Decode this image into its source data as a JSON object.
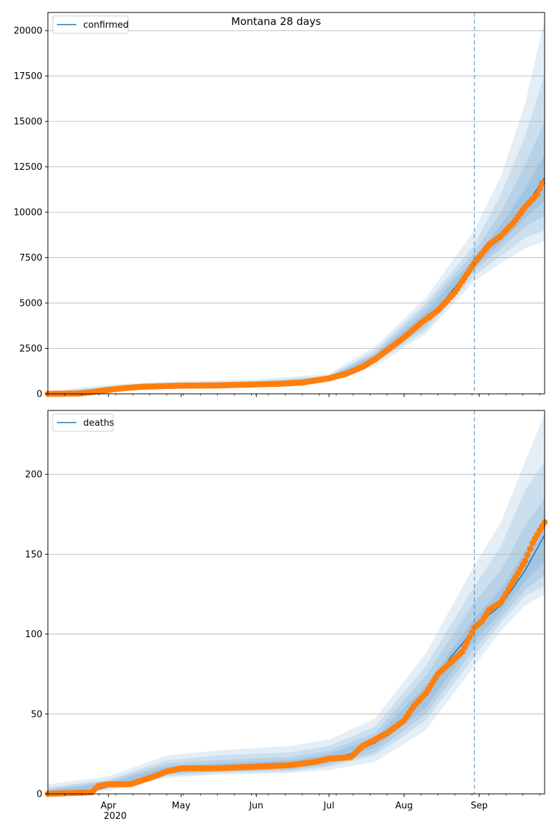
{
  "title": "Montana 28 days",
  "x_tick_labels": [
    "Apr",
    "May",
    "Jun",
    "Jul",
    "Aug",
    "Sep"
  ],
  "x_year_label": "2020",
  "chart_data": [
    {
      "type": "line",
      "x_unit": "date",
      "x_range": [
        "2020-03-07",
        "2020-09-28"
      ],
      "forecast_start": "2020-08-30",
      "ylim": [
        0,
        21000
      ],
      "yticks": [
        0,
        2500,
        5000,
        7500,
        10000,
        12500,
        15000,
        17500,
        20000
      ],
      "grid": "y",
      "legend": "top-left",
      "series": [
        {
          "name": "confirmed",
          "kind": "model-line",
          "color": "#1f77b4",
          "points": [
            [
              "2020-03-07",
              0
            ],
            [
              "2020-03-20",
              15
            ],
            [
              "2020-03-25",
              100
            ],
            [
              "2020-04-01",
              250
            ],
            [
              "2020-04-15",
              400
            ],
            [
              "2020-05-01",
              450
            ],
            [
              "2020-05-20",
              480
            ],
            [
              "2020-06-01",
              510
            ],
            [
              "2020-06-15",
              580
            ],
            [
              "2020-07-01",
              850
            ],
            [
              "2020-07-15",
              1500
            ],
            [
              "2020-07-25",
              2400
            ],
            [
              "2020-08-05",
              3600
            ],
            [
              "2020-08-15",
              4700
            ],
            [
              "2020-08-30",
              7200
            ],
            [
              "2020-09-10",
              8700
            ],
            [
              "2020-09-20",
              10300
            ],
            [
              "2020-09-28",
              11900
            ]
          ]
        },
        {
          "name": "",
          "kind": "observed",
          "color": "#ff7f0e",
          "points": [
            [
              "2020-03-07",
              0
            ],
            [
              "2020-03-15",
              5
            ],
            [
              "2020-03-20",
              20
            ],
            [
              "2020-03-25",
              90
            ],
            [
              "2020-04-01",
              220
            ],
            [
              "2020-04-08",
              320
            ],
            [
              "2020-04-15",
              390
            ],
            [
              "2020-04-25",
              430
            ],
            [
              "2020-05-01",
              450
            ],
            [
              "2020-05-15",
              460
            ],
            [
              "2020-06-01",
              520
            ],
            [
              "2020-06-10",
              550
            ],
            [
              "2020-06-20",
              620
            ],
            [
              "2020-07-01",
              850
            ],
            [
              "2020-07-08",
              1100
            ],
            [
              "2020-07-15",
              1500
            ],
            [
              "2020-07-20",
              1900
            ],
            [
              "2020-07-25",
              2400
            ],
            [
              "2020-08-01",
              3100
            ],
            [
              "2020-08-08",
              3900
            ],
            [
              "2020-08-15",
              4600
            ],
            [
              "2020-08-22",
              5600
            ],
            [
              "2020-08-30",
              7200
            ],
            [
              "2020-09-05",
              8200
            ],
            [
              "2020-09-10",
              8700
            ],
            [
              "2020-09-15",
              9400
            ],
            [
              "2020-09-20",
              10300
            ],
            [
              "2020-09-25",
              11000
            ],
            [
              "2020-09-27",
              11600
            ]
          ]
        }
      ],
      "bands": [
        {
          "opacity": 0.12,
          "points": [
            [
              "2020-03-07",
              0,
              150
            ],
            [
              "2020-04-01",
              150,
              500
            ],
            [
              "2020-05-01",
              380,
              700
            ],
            [
              "2020-06-01",
              430,
              800
            ],
            [
              "2020-07-01",
              700,
              1100
            ],
            [
              "2020-07-20",
              1500,
              2600
            ],
            [
              "2020-08-10",
              3300,
              5300
            ],
            [
              "2020-08-30",
              6200,
              9000
            ],
            [
              "2020-09-10",
              7200,
              12000
            ],
            [
              "2020-09-20",
              8000,
              16000
            ],
            [
              "2020-09-28",
              8400,
              20600
            ]
          ]
        },
        {
          "opacity": 0.12,
          "points": [
            [
              "2020-03-07",
              0,
              100
            ],
            [
              "2020-04-01",
              180,
              420
            ],
            [
              "2020-05-01",
              400,
              620
            ],
            [
              "2020-06-01",
              460,
              700
            ],
            [
              "2020-07-01",
              750,
              1000
            ],
            [
              "2020-07-20",
              1700,
              2400
            ],
            [
              "2020-08-10",
              3500,
              5000
            ],
            [
              "2020-08-30",
              6500,
              8200
            ],
            [
              "2020-09-10",
              7600,
              11000
            ],
            [
              "2020-09-20",
              8600,
              14200
            ],
            [
              "2020-09-28",
              9000,
              17600
            ]
          ]
        },
        {
          "opacity": 0.12,
          "points": [
            [
              "2020-03-07",
              0,
              60
            ],
            [
              "2020-04-01",
              200,
              360
            ],
            [
              "2020-05-01",
              420,
              560
            ],
            [
              "2020-06-01",
              480,
              620
            ],
            [
              "2020-07-01",
              780,
              950
            ],
            [
              "2020-07-20",
              1850,
              2250
            ],
            [
              "2020-08-10",
              3700,
              4800
            ],
            [
              "2020-08-30",
              6800,
              7800
            ],
            [
              "2020-09-10",
              8000,
              10000
            ],
            [
              "2020-09-20",
              9200,
              12600
            ],
            [
              "2020-09-28",
              9800,
              15000
            ]
          ]
        },
        {
          "opacity": 0.12,
          "points": [
            [
              "2020-03-07",
              0,
              30
            ],
            [
              "2020-04-01",
              220,
              300
            ],
            [
              "2020-05-01",
              430,
              500
            ],
            [
              "2020-06-01",
              490,
              560
            ],
            [
              "2020-07-01",
              800,
              920
            ],
            [
              "2020-07-20",
              1950,
              2150
            ],
            [
              "2020-08-10",
              3900,
              4500
            ],
            [
              "2020-08-30",
              7000,
              7500
            ],
            [
              "2020-09-10",
              8300,
              9300
            ],
            [
              "2020-09-20",
              9700,
              11300
            ],
            [
              "2020-09-28",
              10600,
              13200
            ]
          ]
        }
      ]
    },
    {
      "type": "line",
      "x_unit": "date",
      "x_range": [
        "2020-03-07",
        "2020-09-28"
      ],
      "forecast_start": "2020-08-30",
      "ylim": [
        0,
        240
      ],
      "yticks": [
        0,
        50,
        100,
        150,
        200
      ],
      "grid": "y",
      "legend": "top-left",
      "series": [
        {
          "name": "deaths",
          "kind": "model-line",
          "color": "#1f77b4",
          "points": [
            [
              "2020-03-07",
              0
            ],
            [
              "2020-03-20",
              1
            ],
            [
              "2020-03-28",
              3
            ],
            [
              "2020-04-05",
              6
            ],
            [
              "2020-04-15",
              9
            ],
            [
              "2020-04-25",
              14
            ],
            [
              "2020-05-01",
              16
            ],
            [
              "2020-05-15",
              16
            ],
            [
              "2020-06-01",
              17
            ],
            [
              "2020-06-15",
              18
            ],
            [
              "2020-07-01",
              22
            ],
            [
              "2020-07-10",
              25
            ],
            [
              "2020-07-20",
              32
            ],
            [
              "2020-08-01",
              45
            ],
            [
              "2020-08-10",
              62
            ],
            [
              "2020-08-20",
              85
            ],
            [
              "2020-08-30",
              103
            ],
            [
              "2020-09-05",
              112
            ],
            [
              "2020-09-10",
              118
            ],
            [
              "2020-09-20",
              140
            ],
            [
              "2020-09-28",
              162
            ]
          ]
        },
        {
          "name": "",
          "kind": "observed",
          "color": "#ff7f0e",
          "points": [
            [
              "2020-03-07",
              0
            ],
            [
              "2020-03-25",
              1
            ],
            [
              "2020-03-28",
              5
            ],
            [
              "2020-04-01",
              6
            ],
            [
              "2020-04-10",
              6
            ],
            [
              "2020-04-20",
              11
            ],
            [
              "2020-04-25",
              14
            ],
            [
              "2020-05-01",
              16
            ],
            [
              "2020-05-15",
              16
            ],
            [
              "2020-06-01",
              17
            ],
            [
              "2020-06-15",
              18
            ],
            [
              "2020-06-25",
              20
            ],
            [
              "2020-07-01",
              22
            ],
            [
              "2020-07-10",
              23
            ],
            [
              "2020-07-15",
              30
            ],
            [
              "2020-07-20",
              34
            ],
            [
              "2020-07-25",
              38
            ],
            [
              "2020-08-01",
              46
            ],
            [
              "2020-08-05",
              55
            ],
            [
              "2020-08-10",
              63
            ],
            [
              "2020-08-15",
              75
            ],
            [
              "2020-08-20",
              82
            ],
            [
              "2020-08-25",
              89
            ],
            [
              "2020-08-30",
              104
            ],
            [
              "2020-09-02",
              108
            ],
            [
              "2020-09-05",
              115
            ],
            [
              "2020-09-10",
              120
            ],
            [
              "2020-09-15",
              133
            ],
            [
              "2020-09-20",
              146
            ],
            [
              "2020-09-23",
              157
            ],
            [
              "2020-09-26",
              165
            ],
            [
              "2020-09-28",
              170
            ]
          ]
        }
      ],
      "bands": [
        {
          "opacity": 0.12,
          "points": [
            [
              "2020-03-07",
              0,
              6
            ],
            [
              "2020-04-01",
              2,
              11
            ],
            [
              "2020-04-25",
              10,
              24
            ],
            [
              "2020-05-15",
              12,
              27
            ],
            [
              "2020-06-15",
              13,
              30
            ],
            [
              "2020-07-01",
              15,
              34
            ],
            [
              "2020-07-20",
              20,
              47
            ],
            [
              "2020-08-10",
              40,
              88
            ],
            [
              "2020-08-30",
              80,
              143
            ],
            [
              "2020-09-10",
              102,
              170
            ],
            [
              "2020-09-20",
              118,
              208
            ],
            [
              "2020-09-28",
              125,
              238
            ]
          ]
        },
        {
          "opacity": 0.12,
          "points": [
            [
              "2020-03-07",
              0,
              4
            ],
            [
              "2020-04-01",
              3,
              9
            ],
            [
              "2020-04-25",
              11,
              21
            ],
            [
              "2020-05-15",
              13,
              24
            ],
            [
              "2020-06-15",
              14,
              26
            ],
            [
              "2020-07-01",
              17,
              30
            ],
            [
              "2020-07-20",
              24,
              42
            ],
            [
              "2020-08-10",
              46,
              80
            ],
            [
              "2020-08-30",
              86,
              130
            ],
            [
              "2020-09-10",
              107,
              155
            ],
            [
              "2020-09-20",
              124,
              190
            ],
            [
              "2020-09-28",
              130,
              208
            ]
          ]
        },
        {
          "opacity": 0.12,
          "points": [
            [
              "2020-03-07",
              0,
              3
            ],
            [
              "2020-04-01",
              4,
              8
            ],
            [
              "2020-04-25",
              12,
              19
            ],
            [
              "2020-05-15",
              14,
              21
            ],
            [
              "2020-06-15",
              15,
              23
            ],
            [
              "2020-07-01",
              18,
              27
            ],
            [
              "2020-07-20",
              26,
              38
            ],
            [
              "2020-08-10",
              50,
              74
            ],
            [
              "2020-08-30",
              91,
              120
            ],
            [
              "2020-09-10",
              110,
              140
            ],
            [
              "2020-09-20",
              128,
              168
            ],
            [
              "2020-09-28",
              137,
              185
            ]
          ]
        },
        {
          "opacity": 0.12,
          "points": [
            [
              "2020-03-07",
              0,
              2
            ],
            [
              "2020-04-01",
              5,
              7
            ],
            [
              "2020-04-25",
              13,
              17
            ],
            [
              "2020-05-15",
              15,
              19
            ],
            [
              "2020-06-15",
              16,
              21
            ],
            [
              "2020-07-01",
              20,
              25
            ],
            [
              "2020-07-20",
              29,
              35
            ],
            [
              "2020-08-10",
              54,
              68
            ],
            [
              "2020-08-30",
              96,
              110
            ],
            [
              "2020-09-10",
              114,
              128
            ],
            [
              "2020-09-20",
              133,
              152
            ],
            [
              "2020-09-28",
              145,
              170
            ]
          ]
        }
      ]
    }
  ]
}
